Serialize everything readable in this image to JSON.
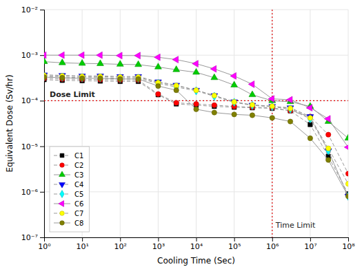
{
  "chart_data": {
    "type": "line",
    "xlabel": "Cooling Time (Sec)",
    "ylabel": "Equivalent Dose (Sv/hr)",
    "log": true,
    "grid": true,
    "legend": "lower left",
    "xlim": [
      1,
      100000000
    ],
    "ylim": [
      1e-07,
      0.01
    ],
    "xticks": [
      {
        "value": 1,
        "label": "10⁰"
      },
      {
        "value": 10,
        "label": "10¹"
      },
      {
        "value": 100,
        "label": "10²"
      },
      {
        "value": 1000,
        "label": "10³"
      },
      {
        "value": 10000,
        "label": "10⁴"
      },
      {
        "value": 100000,
        "label": "10⁵"
      },
      {
        "value": 1000000,
        "label": "10⁶"
      },
      {
        "value": 10000000,
        "label": "10⁷"
      },
      {
        "value": 100000000,
        "label": "10⁸"
      }
    ],
    "yticks": [
      {
        "value": 1e-07,
        "label": "10⁻⁷"
      },
      {
        "value": 1e-06,
        "label": "10⁻⁶"
      },
      {
        "value": 1e-05,
        "label": "10⁻⁵"
      },
      {
        "value": 0.0001,
        "label": "10⁻⁴"
      },
      {
        "value": 0.001,
        "label": "10⁻³"
      },
      {
        "value": 0.01,
        "label": "10⁻²"
      }
    ],
    "x": [
      1,
      3,
      10,
      30,
      100,
      300,
      1000,
      3000,
      10000,
      30000,
      100000,
      300000,
      1000000,
      3000000,
      10000000,
      30000000,
      100000000
    ],
    "series": [
      {
        "name": "C1",
        "color": "#000000",
        "marker": "square",
        "line_style": "dashed",
        "values": [
          0.00029,
          0.00028,
          0.000275,
          0.00027,
          0.000265,
          0.000265,
          0.000135,
          8.5e-05,
          8e-05,
          7.5e-05,
          7.2e-05,
          7e-05,
          6.8e-05,
          6e-05,
          3e-05,
          6e-06,
          9e-07
        ]
      },
      {
        "name": "C2",
        "color": "#ff0000",
        "marker": "circle",
        "line_style": "dashed",
        "values": [
          0.00031,
          0.0003,
          0.000295,
          0.00029,
          0.000285,
          0.000285,
          0.00014,
          9e-05,
          8.5e-05,
          8e-05,
          7.5e-05,
          7.2e-05,
          7e-05,
          6e-05,
          4.5e-05,
          1.8e-05,
          2.5e-06
        ]
      },
      {
        "name": "C3",
        "color": "#00cc00",
        "marker": "triangle-up",
        "line_style": "solid",
        "values": [
          0.00072,
          0.00068,
          0.00066,
          0.00065,
          0.00063,
          0.00062,
          0.00055,
          0.00048,
          0.00042,
          0.00032,
          0.00022,
          0.000135,
          0.0001,
          9.5e-05,
          7.5e-05,
          3.5e-05,
          1.5e-05
        ]
      },
      {
        "name": "C4",
        "color": "#0000ff",
        "marker": "triangle-down",
        "line_style": "dashed",
        "values": [
          0.00037,
          0.00036,
          0.00035,
          0.00035,
          0.00034,
          0.00034,
          0.00026,
          0.00022,
          0.00017,
          0.00013,
          9.5e-05,
          8e-05,
          7.5e-05,
          7e-05,
          4.5e-05,
          8e-06,
          8e-07
        ]
      },
      {
        "name": "C5",
        "color": "#00ffff",
        "marker": "diamond",
        "line_style": "dashed",
        "values": [
          0.00034,
          0.00033,
          0.00032,
          0.00032,
          0.00031,
          0.00031,
          0.00024,
          0.0002,
          0.000165,
          0.000125,
          9.2e-05,
          7.9e-05,
          7.4e-05,
          6.5e-05,
          4e-05,
          8e-06,
          8e-07
        ]
      },
      {
        "name": "C6",
        "color": "#ff00ff",
        "marker": "triangle-left",
        "line_style": "solid",
        "values": [
          0.001,
          0.001,
          0.001,
          0.001,
          0.00098,
          0.00098,
          0.0009,
          0.0008,
          0.00065,
          0.0005,
          0.00035,
          0.00023,
          0.00011,
          0.000105,
          7e-05,
          4e-05,
          9.5e-06
        ]
      },
      {
        "name": "C7",
        "color": "#ffff00",
        "marker": "circle",
        "line_style": "dashed",
        "values": [
          0.00036,
          0.00035,
          0.00034,
          0.00034,
          0.00033,
          0.00033,
          0.00025,
          0.000215,
          0.00017,
          0.00013,
          9.4e-05,
          8.1e-05,
          7.6e-05,
          6.8e-05,
          4.2e-05,
          9e-06,
          1.5e-06
        ]
      },
      {
        "name": "C8",
        "color": "#808000",
        "marker": "circle",
        "line_style": "solid",
        "values": [
          0.00033,
          0.00032,
          0.00031,
          0.00031,
          0.0003,
          0.0003,
          0.00021,
          0.00017,
          6.5e-05,
          5.5e-05,
          5e-05,
          4.8e-05,
          4.2e-05,
          3.5e-05,
          1.5e-05,
          5e-06,
          8e-07
        ]
      }
    ],
    "annotations": [
      {
        "text": "Dose Limit",
        "axis": "y",
        "value": 0.0001,
        "color": "#dd0000"
      },
      {
        "text": "Time Limit",
        "axis": "x",
        "value": 1000000,
        "color": "#dd0000"
      }
    ]
  }
}
